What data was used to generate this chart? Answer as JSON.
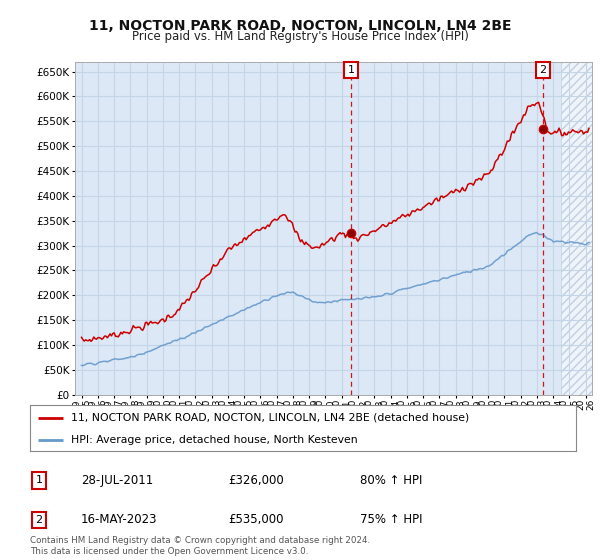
{
  "title": "11, NOCTON PARK ROAD, NOCTON, LINCOLN, LN4 2BE",
  "subtitle": "Price paid vs. HM Land Registry's House Price Index (HPI)",
  "ylim": [
    0,
    670000
  ],
  "yticks": [
    0,
    50000,
    100000,
    150000,
    200000,
    250000,
    300000,
    350000,
    400000,
    450000,
    500000,
    550000,
    600000,
    650000
  ],
  "bg_color": "#dce8f5",
  "grid_color": "#c5d5e8",
  "red_color": "#cc0000",
  "blue_color": "#6699cc",
  "legend_label_red": "11, NOCTON PARK ROAD, NOCTON, LINCOLN, LN4 2BE (detached house)",
  "legend_label_blue": "HPI: Average price, detached house, North Kesteven",
  "annotation1_label": "1",
  "annotation1_date": "28-JUL-2011",
  "annotation1_value": "£326,000",
  "annotation1_pct": "80% ↑ HPI",
  "annotation2_label": "2",
  "annotation2_date": "16-MAY-2023",
  "annotation2_value": "£535,000",
  "annotation2_pct": "75% ↑ HPI",
  "footer": "Contains HM Land Registry data © Crown copyright and database right 2024.\nThis data is licensed under the Open Government Licence v3.0.",
  "sale1_x": 2011.57,
  "sale1_y": 326000,
  "sale2_x": 2023.37,
  "sale2_y": 535000,
  "xmin": 1994.6,
  "xmax": 2026.4,
  "hatch_start": 2024.5
}
